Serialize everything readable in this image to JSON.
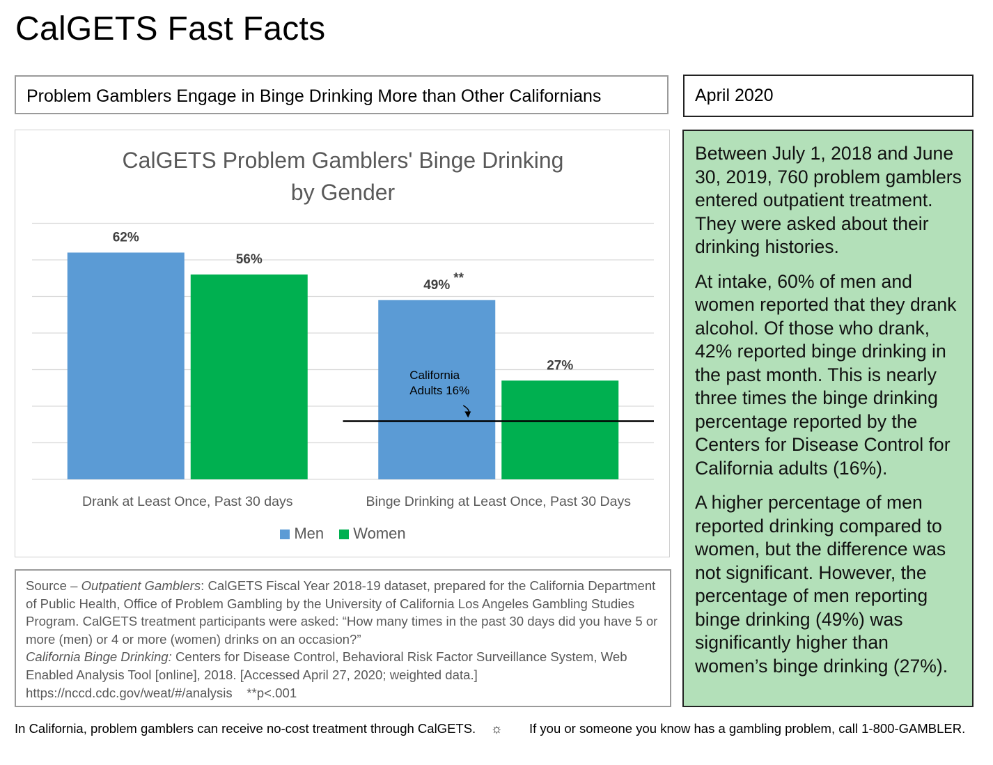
{
  "page": {
    "title": "CalGETS Fast Facts",
    "subtitle": "Problem Gamblers Engage in Binge Drinking More than Other Californians",
    "date": "April 2020"
  },
  "chart_data": {
    "type": "bar",
    "title_lines": [
      "CalGETS Problem Gamblers' Binge Drinking",
      "by Gender"
    ],
    "categories": [
      "Drank at Least Once, Past 30 days",
      "Binge Drinking at Least Once, Past 30 Days"
    ],
    "series": [
      {
        "name": "Men",
        "color": "#5b9bd5",
        "values": [
          62,
          49
        ],
        "labels": [
          "62%",
          "49%"
        ]
      },
      {
        "name": "Women",
        "color": "#00b050",
        "values": [
          56,
          27
        ],
        "labels": [
          "56%",
          "27%"
        ]
      }
    ],
    "significance_marker": {
      "category_index": 1,
      "series_index": 0,
      "text": "**"
    },
    "reference_line": {
      "value": 16,
      "category_index": 1,
      "label_lines": [
        "California",
        "Adults 16%"
      ]
    },
    "ylim": [
      0,
      70
    ],
    "y_gridline_step": 10,
    "grid": true,
    "legend": "bottom",
    "xlabel": "",
    "ylabel": ""
  },
  "source": {
    "label1": "Outpatient Gamblers",
    "text1": ": CalGETS Fiscal Year 2018-19 dataset, prepared for the California Department of Public Health, Office of Problem Gambling by the University of California Los Angeles Gambling Studies Program. CalGETS treatment participants were asked: “How many times in the past 30 days did you have 5 or more (men) or 4 or more (women) drinks on an occasion?”",
    "prefix": "Source – ",
    "label2": "California Binge Drinking:",
    "text2": " Centers for Disease Control, Behavioral Risk Factor Surveillance System, Web Enabled Analysis Tool [online], 2018. [Accessed April 27, 2020; weighted data.]",
    "url": "https://nccd.cdc.gov/weat/#/analysis",
    "note": "**p<.001"
  },
  "info": {
    "paragraphs": [
      "Between July 1, 2018 and June 30, 2019, 760 problem gamblers entered outpatient treatment. They were asked about their drinking histories.",
      "At intake, 60% of men and women reported that they drank alcohol. Of those who drank, 42% reported binge drinking in the past month. This is nearly three times the binge drinking percentage reported by the Centers for Disease Control for California adults (16%).",
      "A higher percentage of men reported drinking compared to women, but the difference was not significant. However, the percentage of men reporting binge drinking (49%) was significantly higher than women’s binge drinking (27%)."
    ]
  },
  "footer": {
    "left": "In California, problem gamblers can receive no-cost treatment through CalGETS.",
    "separator": "☼",
    "right": "If you or someone you know has a gambling problem, call 1-800-GAMBLER."
  }
}
